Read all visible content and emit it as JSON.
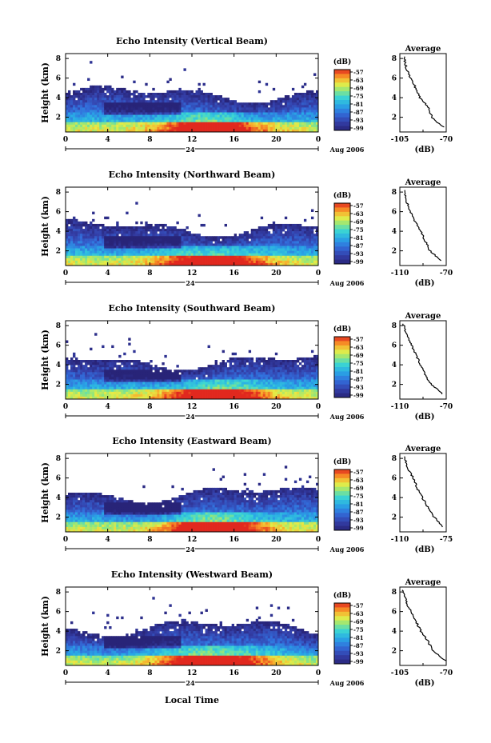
{
  "figure": {
    "xlabel": "Local Time",
    "day_label": "24",
    "date_label": "Aug 2006",
    "colorbar_unit": "(dB)",
    "colorbar_ticks": [
      "-57",
      "-63",
      "-69",
      "-75",
      "-81",
      "-87",
      "-93",
      "-99"
    ],
    "average_title": "Average",
    "average_xlabel": "(dB)"
  },
  "chart_data": [
    {
      "type": "heatmap",
      "title": "Echo Intensity (Vertical Beam)",
      "ylabel": "Height (km)",
      "xticks": [
        "0",
        "4",
        "8",
        "12",
        "16",
        "20",
        "0"
      ],
      "yticks": [
        "2",
        "4",
        "6",
        "8"
      ],
      "xlim": [
        0,
        24
      ],
      "ylim": [
        0.5,
        8.5
      ],
      "colorbar": {
        "label": "(dB)",
        "range": [
          -99,
          -57
        ]
      },
      "profile": {
        "title": "Average",
        "xlim": [
          -105,
          -70
        ],
        "xticks": [
          "-105",
          "-70"
        ],
        "yticks": [
          "2",
          "4",
          "6",
          "8"
        ],
        "heights": [
          8.2,
          7.0,
          6.0,
          5.0,
          4.0,
          3.0,
          2.0,
          1.0
        ],
        "values": [
          -102,
          -100,
          -97,
          -93,
          -90,
          -83,
          -81,
          -72
        ]
      }
    },
    {
      "type": "heatmap",
      "title": "Echo Intensity (Northward Beam)",
      "ylabel": "Height (km)",
      "xticks": [
        "0",
        "4",
        "8",
        "12",
        "16",
        "20",
        "0"
      ],
      "yticks": [
        "2",
        "4",
        "6",
        "8"
      ],
      "xlim": [
        0,
        24
      ],
      "ylim": [
        0.5,
        8.5
      ],
      "colorbar": {
        "label": "(dB)",
        "range": [
          -99,
          -57
        ]
      },
      "profile": {
        "title": "Average",
        "xlim": [
          -110,
          -70
        ],
        "xticks": [
          "-110",
          "-70"
        ],
        "yticks": [
          "2",
          "4",
          "6",
          "8"
        ],
        "heights": [
          8.2,
          7.0,
          6.0,
          5.0,
          4.0,
          3.0,
          2.0,
          1.0
        ],
        "values": [
          -106,
          -104,
          -101,
          -97,
          -92,
          -88,
          -84,
          -74
        ]
      }
    },
    {
      "type": "heatmap",
      "title": "Echo Intensity (Southward Beam)",
      "ylabel": "Height (km)",
      "xticks": [
        "0",
        "4",
        "8",
        "12",
        "16",
        "20",
        "0"
      ],
      "yticks": [
        "2",
        "4",
        "6",
        "8"
      ],
      "xlim": [
        0,
        24
      ],
      "ylim": [
        0.5,
        8.5
      ],
      "colorbar": {
        "label": "(dB)",
        "range": [
          -99,
          -57
        ]
      },
      "profile": {
        "title": "Average",
        "xlim": [
          -110,
          -70
        ],
        "xticks": [
          "-110",
          "-70"
        ],
        "yticks": [
          "2",
          "4",
          "6",
          "8"
        ],
        "heights": [
          8.2,
          7.0,
          6.0,
          5.0,
          4.0,
          3.0,
          2.0,
          1.0
        ],
        "values": [
          -107,
          -104,
          -100,
          -96,
          -92,
          -88,
          -83,
          -73
        ]
      }
    },
    {
      "type": "heatmap",
      "title": "Echo Intensity (Eastward Beam)",
      "ylabel": "Height (km)",
      "xticks": [
        "0",
        "4",
        "8",
        "12",
        "16",
        "20",
        "0"
      ],
      "yticks": [
        "2",
        "4",
        "6",
        "8"
      ],
      "xlim": [
        0,
        24
      ],
      "ylim": [
        0.5,
        8.5
      ],
      "colorbar": {
        "label": "(dB)",
        "range": [
          -99,
          -57
        ]
      },
      "profile": {
        "title": "Average",
        "xlim": [
          -110,
          -75
        ],
        "xticks": [
          "-110",
          "-75"
        ],
        "yticks": [
          "2",
          "4",
          "6",
          "8"
        ],
        "heights": [
          8.2,
          7.0,
          6.0,
          5.0,
          4.0,
          3.0,
          2.0,
          1.0
        ],
        "values": [
          -107,
          -104,
          -100,
          -97,
          -93,
          -89,
          -84,
          -77
        ]
      }
    },
    {
      "type": "heatmap",
      "title": "Echo Intensity (Westward Beam)",
      "ylabel": "Height (km)",
      "xticks": [
        "0",
        "4",
        "8",
        "12",
        "16",
        "20",
        "0"
      ],
      "yticks": [
        "2",
        "4",
        "6",
        "8"
      ],
      "xlim": [
        0,
        24
      ],
      "ylim": [
        0.5,
        8.5
      ],
      "colorbar": {
        "label": "(dB)",
        "range": [
          -99,
          -57
        ]
      },
      "profile": {
        "title": "Average",
        "xlim": [
          -105,
          -70
        ],
        "xticks": [
          "-105",
          "-70"
        ],
        "yticks": [
          "2",
          "4",
          "6",
          "8"
        ],
        "heights": [
          8.2,
          7.0,
          6.0,
          5.0,
          4.0,
          3.0,
          2.0,
          1.0
        ],
        "values": [
          -103,
          -100,
          -97,
          -93,
          -89,
          -84,
          -80,
          -71
        ]
      }
    }
  ]
}
